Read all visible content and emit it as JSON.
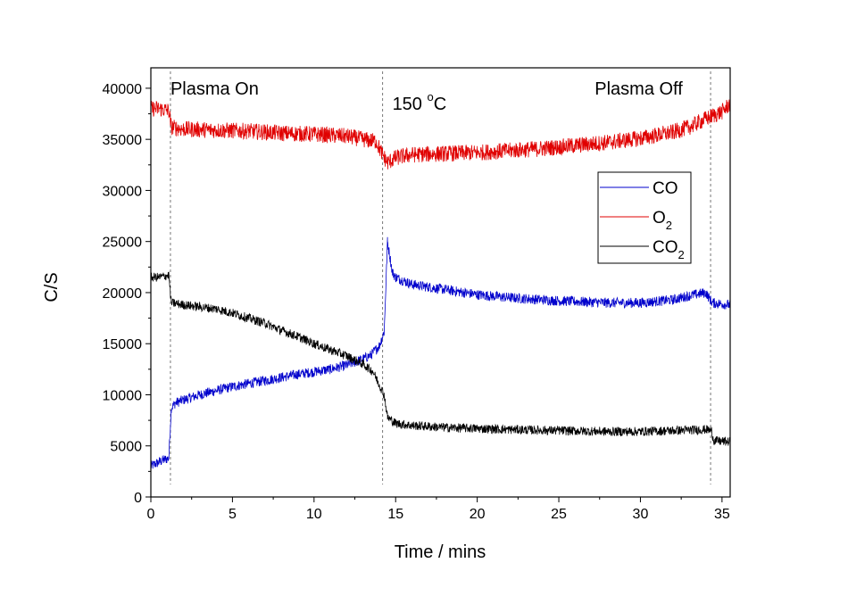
{
  "chart_data": {
    "type": "line",
    "title": "",
    "xlabel": "Time / mins",
    "ylabel": "C/S",
    "xlim": [
      0,
      35.5
    ],
    "ylim": [
      0,
      42000
    ],
    "xticks": [
      0,
      5,
      10,
      15,
      20,
      25,
      30,
      35
    ],
    "yticks": [
      0,
      5000,
      10000,
      15000,
      20000,
      25000,
      30000,
      35000,
      40000
    ],
    "grid": false,
    "legend": "right",
    "annotations": [
      {
        "text": "Plasma On",
        "x": 1.2,
        "y": 40000
      },
      {
        "text": "150",
        "sup": "o",
        "unit": "C",
        "x": 14.8,
        "y": 38500
      },
      {
        "text": "Plasma Off",
        "x": 27.2,
        "y": 40000
      }
    ],
    "vlines": [
      1.2,
      14.2,
      34.3
    ],
    "series": [
      {
        "name": "CO",
        "color": "#0000cc",
        "x": [
          0,
          0.6,
          1.1,
          1.25,
          1.5,
          2,
          3,
          5,
          7,
          9,
          11,
          12,
          13,
          13.5,
          14,
          14.3,
          14.5,
          14.8,
          15,
          16,
          18,
          20,
          22,
          25,
          28,
          30,
          32,
          33,
          34,
          34.4,
          35.5
        ],
        "y": [
          3000,
          3500,
          3800,
          8700,
          9200,
          9500,
          10000,
          10800,
          11400,
          12000,
          12500,
          12900,
          13500,
          13900,
          14800,
          16200,
          25000,
          22000,
          21500,
          20800,
          20300,
          19800,
          19500,
          19200,
          19000,
          19000,
          19300,
          19700,
          20000,
          19000,
          18800
        ]
      },
      {
        "name": "O2",
        "label_main": "O",
        "label_sub": "2",
        "color": "#e00000",
        "x": [
          0,
          0.5,
          1.1,
          1.25,
          2,
          4,
          6,
          8,
          10,
          12,
          13,
          13.8,
          14.2,
          14.5,
          15,
          16,
          18,
          20,
          22,
          24,
          26,
          28,
          30,
          32,
          33,
          34,
          35,
          35.5
        ],
        "y": [
          38000,
          38000,
          37800,
          36200,
          36000,
          35900,
          35800,
          35600,
          35500,
          35300,
          35000,
          34800,
          33500,
          32700,
          33200,
          33500,
          33600,
          33700,
          33900,
          34100,
          34400,
          34700,
          35100,
          35700,
          36200,
          37000,
          37700,
          38500
        ]
      },
      {
        "name": "CO2",
        "label_main": "CO",
        "label_sub": "2",
        "color": "#000000",
        "x": [
          0,
          0.5,
          1.1,
          1.25,
          2,
          3,
          4,
          5,
          6,
          7,
          8,
          9,
          10,
          11,
          12,
          13,
          13.6,
          14,
          14.3,
          14.5,
          15,
          16,
          18,
          20,
          22,
          25,
          28,
          30,
          32,
          34,
          34.35,
          34.5,
          35.5
        ],
        "y": [
          21500,
          21500,
          21700,
          19000,
          18800,
          18600,
          18400,
          18000,
          17500,
          17000,
          16300,
          15700,
          15000,
          14400,
          13800,
          13000,
          12300,
          11000,
          10000,
          7800,
          7200,
          7000,
          6800,
          6700,
          6600,
          6500,
          6400,
          6400,
          6500,
          6600,
          6500,
          5500,
          5400
        ]
      }
    ]
  }
}
